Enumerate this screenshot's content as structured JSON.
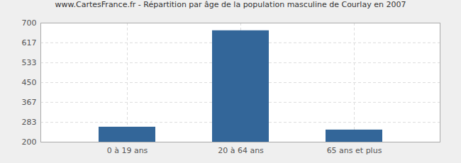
{
  "chart_data": {
    "type": "bar",
    "title": "www.CartesFrance.fr - Répartition par âge de la population masculine de Courlay en 2007",
    "categories": [
      "0 à 19 ans",
      "20 à 64 ans",
      "65 ans et plus"
    ],
    "values": [
      263,
      668,
      251
    ],
    "color": "#336699",
    "ylim": [
      200,
      700
    ],
    "yticks": [
      200,
      283,
      367,
      450,
      533,
      617,
      700
    ],
    "grid": true
  }
}
